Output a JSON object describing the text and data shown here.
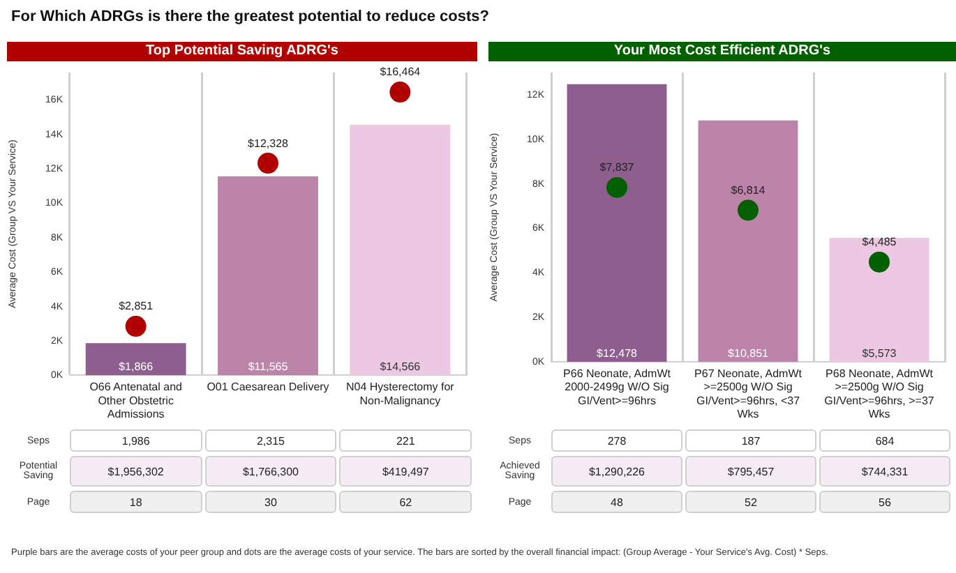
{
  "chart_data": [
    {
      "type": "bar",
      "title": "For Which ADRGs is there the greatest potential to reduce costs?",
      "subtitle": "Top Potential Saving ADRG's",
      "ylabel": "Average Cost (Group VS Your Service)",
      "categories": [
        "O66 Antenatal and Other Obstetric Admissions",
        "O01 Caesarean Delivery",
        "N04 Hysterectomy for Non-Malignancy"
      ],
      "series": [
        {
          "colors": [
            "#8e5f8e",
            "#bc84a8",
            "#ecc8e2"
          ],
          "values": [
            1866,
            11565,
            14566
          ],
          "value_labels": [
            "$1,866",
            "$11,565",
            "$14,566"
          ]
        },
        {
          "type": "scatter",
          "x": [
            "O66 Antenatal and Other Obstetric Admissions",
            "O01 Caesarean Delivery",
            "N04 Hysterectomy for Non-Malignancy"
          ],
          "color": "#b00000",
          "values": [
            2851,
            12328,
            16464
          ],
          "value_labels": [
            "$2,851",
            "$12,328",
            "$16,464"
          ]
        }
      ],
      "ylim": [
        0,
        17600
      ],
      "yticks": [
        {
          "value": 0,
          "label": "0K"
        },
        {
          "value": 2000,
          "label": "2K"
        },
        {
          "value": 4000,
          "label": "4K"
        },
        {
          "value": 6000,
          "label": "6K"
        },
        {
          "value": 8000,
          "label": "8K"
        },
        {
          "value": 10000,
          "label": "10K"
        },
        {
          "value": 12000,
          "label": "12K"
        },
        {
          "value": 14000,
          "label": "14K"
        },
        {
          "value": 16000,
          "label": "16K"
        }
      ],
      "grid": "x",
      "legend": false,
      "marker": "circle",
      "annotations": [
        "Seps",
        "1,986",
        "2,315",
        "221",
        "Potential Saving",
        "$1,956,302",
        "$1,766,300",
        "$419,497",
        "Page",
        "18",
        "30",
        "62",
        "Purple bars are the average costs of your peer group and dots are the average costs of your service. The bars are sorted by the overall financial impact: (Group Average - Your Service's Avg. Cost) * Seps."
      ]
    },
    {
      "type": "bar",
      "subtitle": "Your Most Cost Efficient ADRG's",
      "ylabel": "Average Cost (Group VS Your Service)",
      "categories": [
        "P66 Neonate, AdmWt 2000-2499g W/O Sig GI/Vent>=96hrs",
        "P67 Neonate, AdmWt >=2500g W/O Sig GI/Vent>=96hrs, <37 Wks",
        "P68 Neonate, AdmWt >=2500g W/O Sig GI/Vent>=96hrs, >=37 Wks"
      ],
      "series": [
        {
          "colors": [
            "#8e5f8e",
            "#bc84a8",
            "#ecc8e2"
          ],
          "values": [
            12478,
            10851,
            5573
          ],
          "value_labels": [
            "$12,478",
            "$10,851",
            "$5,573"
          ]
        },
        {
          "type": "scatter",
          "x": [
            "P66 Neonate, AdmWt 2000-2499g W/O Sig GI/Vent>=96hrs",
            "P67 Neonate, AdmWt >=2500g W/O Sig GI/Vent>=96hrs, <37 Wks",
            "P68 Neonate, AdmWt >=2500g W/O Sig GI/Vent>=96hrs, >=37 Wks"
          ],
          "color": "#006000",
          "values": [
            7837,
            6814,
            4485
          ],
          "value_labels": [
            "$7,837",
            "$6,814",
            "$4,485"
          ]
        }
      ],
      "ylim": [
        0,
        13000
      ],
      "yticks": [
        {
          "value": 0,
          "label": "0K"
        },
        {
          "value": 2000,
          "label": "2K"
        },
        {
          "value": 4000,
          "label": "4K"
        },
        {
          "value": 6000,
          "label": "6K"
        },
        {
          "value": 8000,
          "label": "8K"
        },
        {
          "value": 10000,
          "label": "10K"
        },
        {
          "value": 12000,
          "label": "12K"
        }
      ],
      "grid": "x",
      "legend": false,
      "marker": "circle",
      "annotations": [
        "Seps",
        "278",
        "187",
        "684",
        "Achieved Saving",
        "$1,290,226",
        "$795,457",
        "$744,331",
        "Page",
        "48",
        "52",
        "56"
      ]
    }
  ]
}
